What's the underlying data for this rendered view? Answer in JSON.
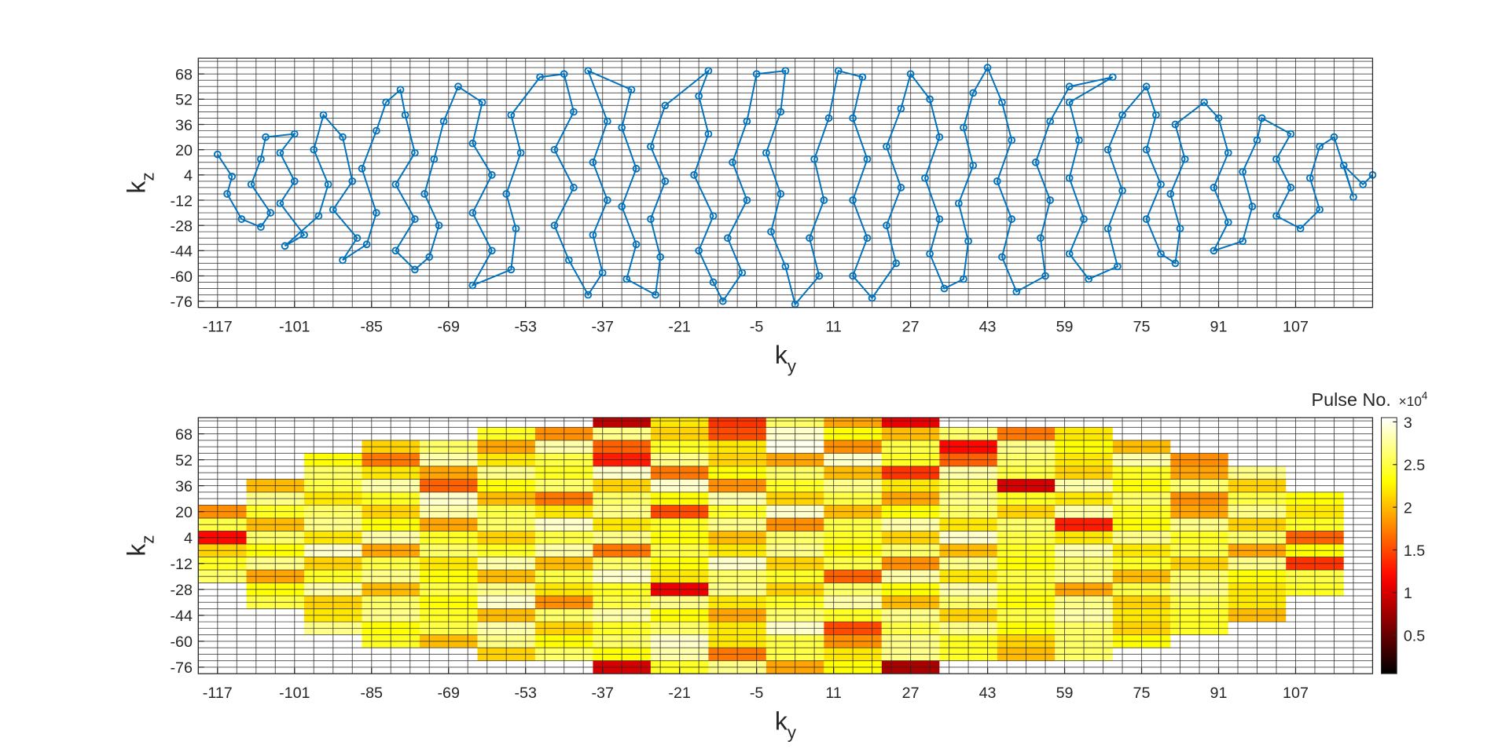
{
  "chart_data": [
    {
      "type": "line",
      "xlabel": {
        "text": "k",
        "subscript": "y"
      },
      "ylabel": {
        "text": "k",
        "subscript": "z"
      },
      "color": "#0072bd",
      "xlim": [
        -121,
        123
      ],
      "ylim": [
        -80,
        78
      ],
      "xticks": [
        -117,
        -101,
        -85,
        -69,
        -53,
        -37,
        -21,
        -5,
        11,
        27,
        43,
        59,
        75,
        91,
        107
      ],
      "yticks": [
        -76,
        -60,
        -44,
        -28,
        -12,
        4,
        20,
        36,
        52,
        68
      ],
      "grid": true,
      "xgrid": [
        -121,
        -117,
        -113,
        -109,
        -105,
        -101,
        -97,
        -93,
        -89,
        -85,
        -81,
        -77,
        -73,
        -69,
        -65,
        -61,
        -57,
        -53,
        -49,
        -45,
        -41,
        -37,
        -33,
        -29,
        -25,
        -21,
        -17,
        -13,
        -9,
        -5,
        -1,
        3,
        7,
        11,
        15,
        19,
        23,
        27,
        31,
        35,
        39,
        43,
        47,
        51,
        55,
        59,
        63,
        67,
        71,
        75,
        79,
        83,
        87,
        91,
        95,
        99,
        103,
        107,
        111,
        115,
        119,
        123
      ],
      "ygrid": [
        -80,
        -76,
        -72,
        -68,
        -64,
        -60,
        -56,
        -52,
        -48,
        -44,
        -40,
        -36,
        -32,
        -28,
        -24,
        -20,
        -16,
        -12,
        -8,
        -4,
        0,
        4,
        8,
        12,
        16,
        20,
        24,
        28,
        32,
        36,
        40,
        44,
        48,
        52,
        56,
        60,
        64,
        68,
        72,
        76
      ],
      "x": [
        -117,
        -114,
        -115,
        -112,
        -108,
        -106,
        -110,
        -108,
        -107,
        -101,
        -104,
        -101,
        -104,
        -99,
        -103,
        -96,
        -94,
        -97,
        -95,
        -91,
        -89,
        -93,
        -88,
        -91,
        -86,
        -84,
        -87,
        -84,
        -82,
        -79,
        -78,
        -76,
        -80,
        -76,
        -80,
        -76,
        -73,
        -71,
        -74,
        -72,
        -70,
        -67,
        -62,
        -64,
        -60,
        -64,
        -60,
        -64,
        -56,
        -55,
        -57,
        -54,
        -56,
        -50,
        -45,
        -43,
        -47,
        -43,
        -47,
        -44,
        -40,
        -37,
        -39,
        -36,
        -39,
        -36,
        -40,
        -31,
        -33,
        -30,
        -33,
        -30,
        -32,
        -26,
        -25,
        -27,
        -24,
        -27,
        -24,
        -15,
        -17,
        -15,
        -18,
        -14,
        -17,
        -14,
        -12,
        -8,
        -11,
        -7,
        -10,
        -7,
        -5,
        1,
        0,
        -3,
        0,
        -2,
        1,
        3,
        8,
        6,
        9,
        7,
        10,
        12,
        17,
        15,
        18,
        15,
        18,
        15,
        19,
        24,
        22,
        25,
        22,
        25,
        27,
        31,
        33,
        30,
        33,
        31,
        34,
        38,
        39,
        37,
        40,
        38,
        40,
        43,
        46,
        48,
        45,
        48,
        46,
        49,
        55,
        54,
        56,
        53,
        56,
        60,
        69,
        60,
        62,
        60,
        63,
        60,
        64,
        70,
        68,
        71,
        68,
        71,
        76,
        78,
        76,
        79,
        76,
        79,
        82,
        83,
        81,
        84,
        82,
        88,
        91,
        93,
        90,
        93,
        90,
        96,
        98,
        96,
        99,
        100,
        106,
        103,
        106,
        103,
        108,
        112,
        110,
        112,
        115,
        119,
        117,
        121,
        123
      ],
      "y": [
        17,
        3,
        -8,
        -24,
        -29,
        -20,
        -2,
        14,
        28,
        30,
        18,
        0,
        -14,
        -34,
        -41,
        -22,
        -2,
        20,
        42,
        28,
        0,
        -18,
        -36,
        -50,
        -40,
        -20,
        8,
        32,
        50,
        58,
        42,
        18,
        -2,
        -24,
        -44,
        -56,
        -48,
        -28,
        -8,
        14,
        38,
        60,
        50,
        24,
        4,
        -20,
        -44,
        -66,
        -56,
        -30,
        -8,
        18,
        42,
        66,
        68,
        44,
        20,
        -4,
        -28,
        -50,
        -72,
        -58,
        -34,
        -12,
        12,
        38,
        70,
        58,
        34,
        8,
        -16,
        -40,
        -62,
        -72,
        -48,
        -24,
        0,
        22,
        48,
        70,
        54,
        30,
        4,
        -22,
        -44,
        -64,
        -76,
        -58,
        -36,
        -12,
        12,
        38,
        68,
        70,
        44,
        18,
        -8,
        -32,
        -54,
        -78,
        -60,
        -36,
        -12,
        14,
        40,
        70,
        66,
        40,
        14,
        -12,
        -36,
        -60,
        -74,
        -52,
        -28,
        -4,
        22,
        46,
        68,
        52,
        28,
        2,
        -24,
        -46,
        -68,
        -62,
        -38,
        -14,
        10,
        34,
        56,
        72,
        50,
        26,
        0,
        -24,
        -48,
        -70,
        -60,
        -36,
        -12,
        12,
        38,
        60,
        66,
        50,
        26,
        2,
        -24,
        -46,
        -62,
        -54,
        -30,
        -6,
        20,
        42,
        60,
        42,
        20,
        -2,
        -24,
        -46,
        -52,
        -30,
        -8,
        14,
        36,
        50,
        40,
        18,
        -4,
        -26,
        -44,
        -38,
        -16,
        6,
        26,
        40,
        30,
        14,
        -4,
        -22,
        -30,
        -18,
        2,
        22,
        28,
        -10,
        10,
        -2,
        4
      ]
    },
    {
      "type": "heatmap",
      "xlabel": {
        "text": "k",
        "subscript": "y"
      },
      "ylabel": {
        "text": "k",
        "subscript": "z"
      },
      "colormap": "hot",
      "xlim": [
        -121,
        123
      ],
      "ylim": [
        -80,
        78
      ],
      "xticks": [
        -117,
        -101,
        -85,
        -69,
        -53,
        -37,
        -21,
        -5,
        11,
        27,
        43,
        59,
        75,
        91,
        107
      ],
      "yticks": [
        -76,
        -60,
        -44,
        -28,
        -12,
        4,
        20,
        36,
        52,
        68
      ],
      "grid": true,
      "xgrid": [
        -121,
        -117,
        -113,
        -109,
        -105,
        -101,
        -97,
        -93,
        -89,
        -85,
        -81,
        -77,
        -73,
        -69,
        -65,
        -61,
        -57,
        -53,
        -49,
        -45,
        -41,
        -37,
        -33,
        -29,
        -25,
        -21,
        -17,
        -13,
        -9,
        -5,
        -1,
        3,
        7,
        11,
        15,
        19,
        23,
        27,
        31,
        35,
        39,
        43,
        47,
        51,
        55,
        59,
        63,
        67,
        71,
        75,
        79,
        83,
        87,
        91,
        95,
        99,
        103,
        107,
        111,
        115,
        119,
        123
      ],
      "ygrid": [
        -80,
        -76,
        -72,
        -68,
        -64,
        -60,
        -56,
        -52,
        -48,
        -44,
        -40,
        -36,
        -32,
        -28,
        -24,
        -20,
        -16,
        -12,
        -8,
        -4,
        0,
        4,
        8,
        12,
        16,
        20,
        24,
        28,
        32,
        36,
        40,
        44,
        48,
        52,
        56,
        60,
        64,
        68,
        72,
        76
      ],
      "colorbar": {
        "label": "Pulse No.",
        "multiplier": {
          "text": "×10",
          "superscript": "4"
        },
        "clim": [
          500,
          30500
        ],
        "ticks": [
          {
            "value": 5000,
            "label": "0.5"
          },
          {
            "value": 10000,
            "label": "1"
          },
          {
            "value": 15000,
            "label": "1.5"
          },
          {
            "value": 20000,
            "label": "2"
          },
          {
            "value": 25000,
            "label": "2.5"
          },
          {
            "value": 30000,
            "label": "3"
          }
        ]
      },
      "x": [
        -117,
        -105,
        -93,
        -81,
        -69,
        -57,
        -45,
        -33,
        -21,
        -9,
        3,
        15,
        27,
        39,
        51,
        63,
        75,
        87,
        99,
        111,
        123
      ],
      "y": [
        76,
        68,
        60,
        52,
        44,
        36,
        28,
        20,
        12,
        4,
        -4,
        -12,
        -20,
        -28,
        -36,
        -44,
        -52,
        -60,
        -68,
        -76
      ],
      "z": [
        [
          null,
          null,
          null,
          null,
          null,
          null,
          null,
          9000,
          22000,
          14000,
          26000,
          19000,
          11000,
          null,
          null,
          null,
          null,
          null,
          null,
          null,
          null
        ],
        [
          null,
          null,
          null,
          null,
          null,
          24000,
          18000,
          27000,
          21000,
          15000,
          29000,
          23000,
          20000,
          26000,
          17000,
          22000,
          null,
          null,
          null,
          null,
          null
        ],
        [
          null,
          null,
          null,
          21000,
          26000,
          19000,
          28000,
          16000,
          24000,
          22000,
          30000,
          18000,
          25000,
          12000,
          27000,
          23000,
          20000,
          null,
          null,
          null,
          null
        ],
        [
          null,
          null,
          23000,
          17000,
          28000,
          22000,
          25000,
          13000,
          27000,
          21000,
          19000,
          29000,
          24000,
          16000,
          26000,
          22000,
          28000,
          18000,
          null,
          null,
          null
        ],
        [
          null,
          null,
          26000,
          22000,
          19000,
          27000,
          24000,
          29000,
          17000,
          23000,
          26000,
          20000,
          14000,
          28000,
          25000,
          21000,
          24000,
          19000,
          27000,
          null,
          null
        ],
        [
          null,
          20000,
          25000,
          28000,
          16000,
          23000,
          26000,
          21000,
          29000,
          18000,
          24000,
          27000,
          22000,
          25000,
          10000,
          28000,
          23000,
          26000,
          21000,
          null,
          null
        ],
        [
          null,
          27000,
          22000,
          24000,
          29000,
          20000,
          17000,
          26000,
          23000,
          28000,
          21000,
          25000,
          19000,
          27000,
          24000,
          22000,
          26000,
          18000,
          25000,
          23000,
          null
        ],
        [
          18000,
          24000,
          26000,
          21000,
          28000,
          25000,
          22000,
          27000,
          15000,
          24000,
          29000,
          20000,
          23000,
          26000,
          21000,
          28000,
          24000,
          19000,
          27000,
          22000,
          null
        ],
        [
          25000,
          20000,
          27000,
          23000,
          19000,
          26000,
          29000,
          22000,
          24000,
          27000,
          18000,
          25000,
          28000,
          22000,
          26000,
          13000,
          23000,
          27000,
          21000,
          24000,
          null
        ],
        [
          12000,
          26000,
          22000,
          28000,
          24000,
          21000,
          25000,
          27000,
          23000,
          20000,
          26000,
          24000,
          21000,
          29000,
          25000,
          22000,
          27000,
          24000,
          26000,
          16000,
          null
        ],
        [
          21000,
          23000,
          29000,
          19000,
          26000,
          24000,
          28000,
          17000,
          25000,
          22000,
          27000,
          23000,
          26000,
          20000,
          24000,
          28000,
          22000,
          25000,
          19000,
          23000,
          null
        ],
        [
          24000,
          27000,
          21000,
          25000,
          22000,
          28000,
          20000,
          26000,
          23000,
          29000,
          21000,
          25000,
          18000,
          27000,
          23000,
          26000,
          24000,
          21000,
          27000,
          14000,
          null
        ],
        [
          26000,
          19000,
          24000,
          27000,
          23000,
          20000,
          25000,
          29000,
          22000,
          26000,
          24000,
          16000,
          28000,
          22000,
          25000,
          27000,
          20000,
          26000,
          23000,
          25000,
          null
        ],
        [
          null,
          23000,
          28000,
          20000,
          25000,
          27000,
          22000,
          24000,
          11000,
          27000,
          21000,
          26000,
          23000,
          28000,
          24000,
          19000,
          25000,
          27000,
          22000,
          24000,
          null
        ],
        [
          null,
          25000,
          21000,
          26000,
          23000,
          29000,
          18000,
          25000,
          27000,
          22000,
          24000,
          28000,
          20000,
          26000,
          23000,
          27000,
          21000,
          25000,
          22000,
          null,
          null
        ],
        [
          null,
          null,
          22000,
          27000,
          24000,
          20000,
          26000,
          28000,
          23000,
          19000,
          26000,
          24000,
          27000,
          21000,
          25000,
          28000,
          22000,
          24000,
          20000,
          null,
          null
        ],
        [
          null,
          null,
          27000,
          23000,
          25000,
          28000,
          21000,
          24000,
          26000,
          22000,
          29000,
          15000,
          25000,
          27000,
          23000,
          26000,
          21000,
          24000,
          null,
          null,
          null
        ],
        [
          null,
          null,
          null,
          24000,
          20000,
          27000,
          23000,
          26000,
          29000,
          22000,
          25000,
          18000,
          27000,
          24000,
          21000,
          26000,
          23000,
          null,
          null,
          null,
          null
        ],
        [
          null,
          null,
          null,
          null,
          null,
          21000,
          26000,
          23000,
          28000,
          17000,
          25000,
          22000,
          27000,
          24000,
          20000,
          26000,
          null,
          null,
          null,
          null,
          null
        ],
        [
          null,
          null,
          null,
          null,
          null,
          null,
          null,
          10000,
          24000,
          27000,
          19000,
          23000,
          8000,
          null,
          null,
          null,
          null,
          null,
          null,
          null,
          null
        ]
      ]
    }
  ]
}
